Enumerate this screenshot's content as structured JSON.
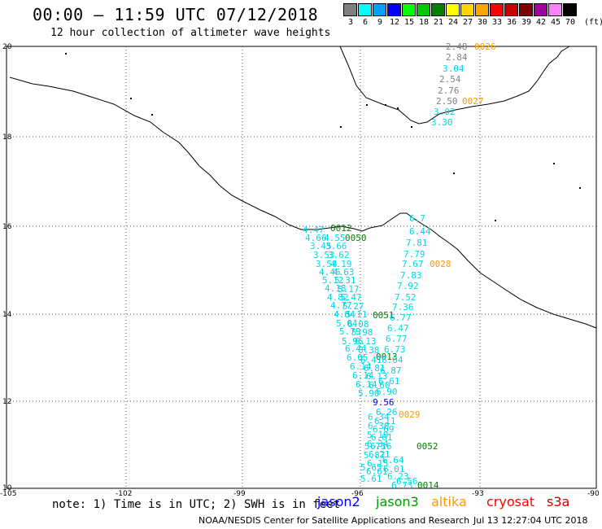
{
  "header": {
    "title": "00:00 — 11:59 UTC 07/12/2018",
    "subtitle": "12 hour collection of altimeter wave heights"
  },
  "legend": {
    "unit": "(ft)",
    "scale": [
      {
        "label": "3",
        "color": "#7f7f7f"
      },
      {
        "label": "6",
        "color": "#00ffff"
      },
      {
        "label": "9",
        "color": "#00a0ff"
      },
      {
        "label": "12",
        "color": "#0000ff"
      },
      {
        "label": "15",
        "color": "#00ff00"
      },
      {
        "label": "18",
        "color": "#00c800"
      },
      {
        "label": "21",
        "color": "#008000"
      },
      {
        "label": "24",
        "color": "#ffff00"
      },
      {
        "label": "27",
        "color": "#ffd700"
      },
      {
        "label": "30",
        "color": "#ffa500"
      },
      {
        "label": "33",
        "color": "#ff0000"
      },
      {
        "label": "36",
        "color": "#c80000"
      },
      {
        "label": "39",
        "color": "#800000"
      },
      {
        "label": "42",
        "color": "#a000a0"
      },
      {
        "label": "45",
        "color": "#ff80ff"
      },
      {
        "label": "70",
        "color": "#000000"
      }
    ]
  },
  "axes": {
    "lat_labels": [
      "20",
      "18",
      "16",
      "14",
      "12",
      "10"
    ],
    "lon_labels": [
      "-105",
      "-102",
      "-99",
      "-96",
      "-93",
      "-90"
    ]
  },
  "tracks": [
    {
      "time": "0026",
      "time_color": "#ff9900",
      "points": [
        {
          "v": "2.48",
          "c": "#808080"
        },
        {
          "v": "2.84",
          "c": "#808080"
        },
        {
          "v": "3.04",
          "c": "#00d8e8"
        },
        {
          "v": "2.54",
          "c": "#808080"
        },
        {
          "v": "2.76",
          "c": "#808080"
        },
        {
          "v": "2.50",
          "c": "#808080"
        },
        {
          "v": "3.02",
          "c": "#00d8e8"
        },
        {
          "v": "3.30",
          "c": "#00d8e8"
        }
      ]
    },
    {
      "time": "0027",
      "time_color": "#ff9900"
    },
    {
      "time": "0028",
      "time_color": "#ff9900",
      "points": [
        {
          "v": "6.7",
          "c": "#00d8e8"
        },
        {
          "v": "6.44",
          "c": "#00d8e8"
        },
        {
          "v": "7.81",
          "c": "#00d8e8"
        },
        {
          "v": "7.79",
          "c": "#00d8e8"
        },
        {
          "v": "7.67",
          "c": "#00d8e8"
        },
        {
          "v": "7.83",
          "c": "#00d8e8"
        },
        {
          "v": "7.92",
          "c": "#00d8e8"
        },
        {
          "v": "7.52",
          "c": "#00d8e8"
        },
        {
          "v": "7.36",
          "c": "#00d8e8"
        },
        {
          "v": "6.77",
          "c": "#00d8e8"
        },
        {
          "v": "6.47",
          "c": "#00d8e8"
        },
        {
          "v": "6.77",
          "c": "#00d8e8"
        },
        {
          "v": "6.73",
          "c": "#00d8e8"
        },
        {
          "v": "6.04",
          "c": "#00d8e8"
        },
        {
          "v": "6.87",
          "c": "#00d8e8"
        },
        {
          "v": "6.61",
          "c": "#00d8e8"
        },
        {
          "v": "6.90",
          "c": "#00d8e8"
        }
      ]
    },
    {
      "time": "0029",
      "time_color": "#ff9900",
      "points": [
        {
          "v": "9.56",
          "c": "#0000ff"
        },
        {
          "v": "6.26",
          "c": "#00d8e8"
        },
        {
          "v": "6.11",
          "c": "#00d8e8"
        },
        {
          "v": "6.69",
          "c": "#00d8e8"
        },
        {
          "v": "6.61",
          "c": "#00d8e8"
        },
        {
          "v": "6.16",
          "c": "#00d8e8"
        },
        {
          "v": "6.21",
          "c": "#00d8e8"
        },
        {
          "v": "6.15",
          "c": "#00d8e8"
        },
        {
          "v": "6.61",
          "c": "#00d8e8"
        },
        {
          "v": "6.56",
          "c": "#00d8e8"
        }
      ]
    },
    {
      "time": "0012",
      "time_color": "#008000",
      "points": [
        {
          "v": "4.47",
          "c": "#00d8e8"
        },
        {
          "v": "4.66",
          "c": "#00d8e8"
        },
        {
          "v": "3.45",
          "c": "#00d8e8"
        },
        {
          "v": "3.53",
          "c": "#00d8e8"
        },
        {
          "v": "3.54",
          "c": "#00d8e8"
        },
        {
          "v": "4.46",
          "c": "#00d8e8"
        },
        {
          "v": "5.12",
          "c": "#00d8e8"
        },
        {
          "v": "4.18",
          "c": "#00d8e8"
        },
        {
          "v": "4.82",
          "c": "#00d8e8"
        },
        {
          "v": "4.77",
          "c": "#00d8e8"
        },
        {
          "v": "4.84",
          "c": "#00d8e8"
        },
        {
          "v": "5.04",
          "c": "#00d8e8"
        },
        {
          "v": "5.79",
          "c": "#00d8e8"
        },
        {
          "v": "5.96",
          "c": "#00d8e8"
        },
        {
          "v": "6.44",
          "c": "#00d8e8"
        },
        {
          "v": "6.05",
          "c": "#00d8e8"
        },
        {
          "v": "6.14",
          "c": "#00d8e8"
        },
        {
          "v": "6.14",
          "c": "#00d8e8"
        },
        {
          "v": "6.14",
          "c": "#00d8e8"
        },
        {
          "v": "5.90",
          "c": "#00d8e8"
        }
      ]
    },
    {
      "time": "0050",
      "time_color": "#008000",
      "points": [
        {
          "v": "4.55",
          "c": "#00d8e8"
        },
        {
          "v": "3.66",
          "c": "#00d8e8"
        },
        {
          "v": "3.62",
          "c": "#00d8e8"
        },
        {
          "v": "4.19",
          "c": "#00d8e8"
        },
        {
          "v": "4.63",
          "c": "#00d8e8"
        },
        {
          "v": "5.31",
          "c": "#00d8e8"
        },
        {
          "v": "5.17",
          "c": "#00d8e8"
        },
        {
          "v": "5.47",
          "c": "#00d8e8"
        },
        {
          "v": "5.27",
          "c": "#00d8e8"
        },
        {
          "v": "5.11",
          "c": "#00d8e8"
        },
        {
          "v": "6.08",
          "c": "#00d8e8"
        },
        {
          "v": "5.98",
          "c": "#00d8e8"
        },
        {
          "v": "6.13",
          "c": "#00d8e8"
        },
        {
          "v": "6.38",
          "c": "#00d8e8"
        },
        {
          "v": "6.41",
          "c": "#00d8e8"
        },
        {
          "v": "6.81",
          "c": "#00d8e8"
        },
        {
          "v": "6.13",
          "c": "#00d8e8"
        },
        {
          "v": "6.60",
          "c": "#00d8e8"
        }
      ]
    },
    {
      "time": "0051",
      "time_color": "#008000"
    },
    {
      "time": "0013",
      "time_color": "#008000"
    },
    {
      "time": "0052",
      "time_color": "#008000",
      "points": [
        {
          "v": "6.34",
          "c": "#00d8e8"
        },
        {
          "v": "6.30",
          "c": "#00d8e8"
        },
        {
          "v": "5.19",
          "c": "#00d8e8"
        },
        {
          "v": "6.34",
          "c": "#00d8e8"
        },
        {
          "v": "5.75",
          "c": "#00d8e8"
        },
        {
          "v": "5.87",
          "c": "#00d8e8"
        },
        {
          "v": "6.64",
          "c": "#00d8e8"
        },
        {
          "v": "5.65",
          "c": "#00d8e8"
        },
        {
          "v": "6.01",
          "c": "#00d8e8"
        },
        {
          "v": "5.61",
          "c": "#00d8e8"
        },
        {
          "v": "6.23",
          "c": "#00d8e8"
        },
        {
          "v": "6.73",
          "c": "#00d8e8"
        }
      ]
    },
    {
      "time": "0014",
      "time_color": "#008000"
    }
  ],
  "footer": {
    "note": "note: 1) Time is in UTC; 2) SWH is in feet",
    "satellites": [
      {
        "name": "jason2",
        "color": "#0000ff"
      },
      {
        "name": "jason3",
        "color": "#009900"
      },
      {
        "name": "altika",
        "color": "#ff9900"
      },
      {
        "name": "cryosat",
        "color": "#ff0000"
      },
      {
        "name": "s3a",
        "color": "#cc0000"
      }
    ],
    "credit": "NOAA/NESDIS Center for Satellite Applications and Research",
    "timestamp": "Jul 13 12:27:04 UTC 2018"
  }
}
